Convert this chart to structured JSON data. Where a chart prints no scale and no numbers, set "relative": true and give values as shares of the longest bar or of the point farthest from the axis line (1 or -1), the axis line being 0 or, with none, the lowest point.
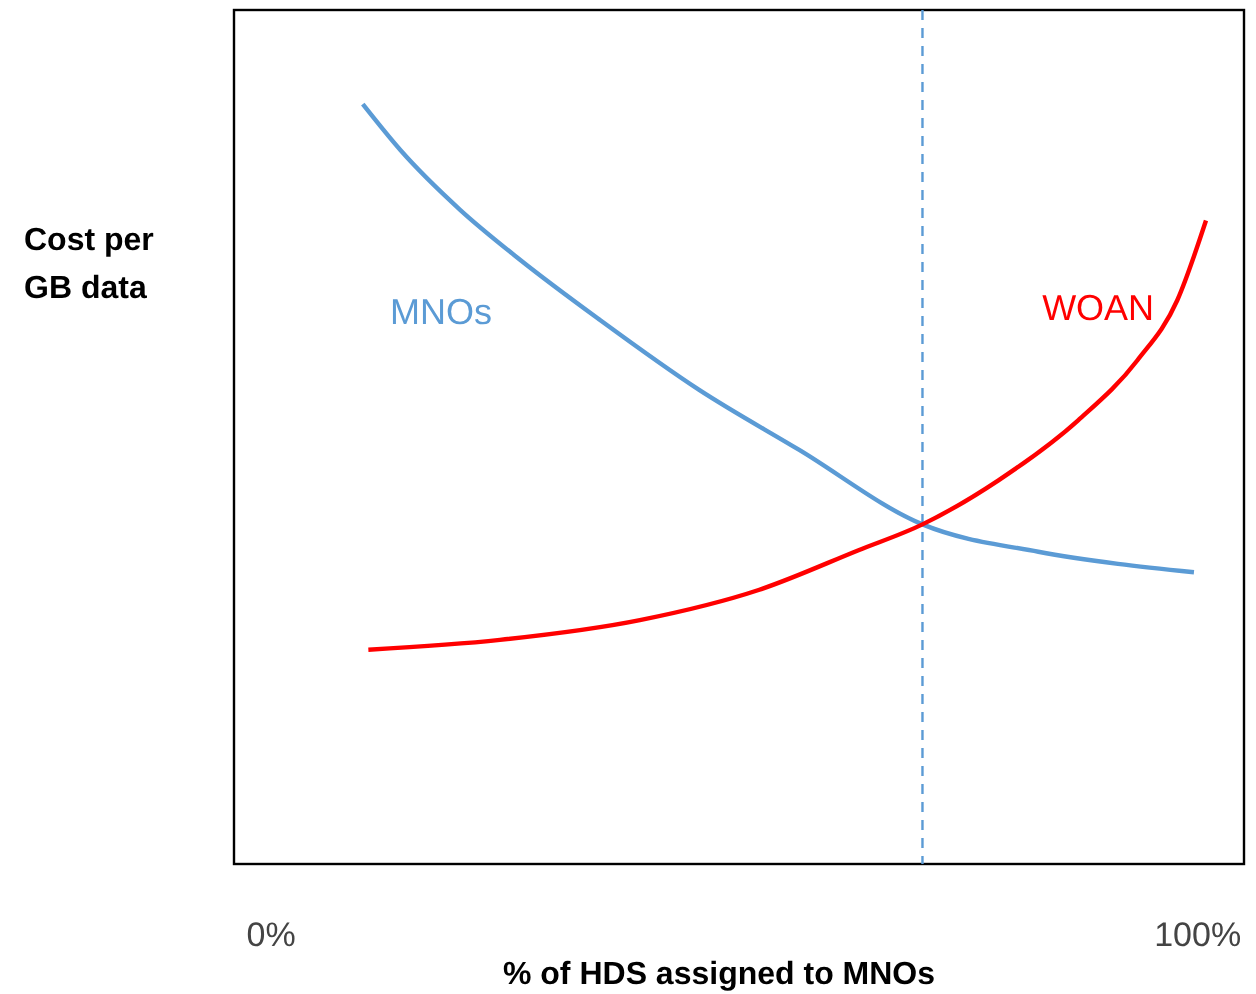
{
  "chart_data": {
    "type": "line",
    "relative": true,
    "xlabel": "% of HDS assigned to MNOs",
    "ylabel": "Cost per\nGB data",
    "xlim": [
      -4,
      105
    ],
    "xticks": [
      {
        "value": 0,
        "label": "0%"
      },
      {
        "value": 100,
        "label": "100%"
      }
    ],
    "grid": false,
    "marker": "none",
    "line_style": "solid",
    "series": [
      {
        "name": "MNOs",
        "color": "#5b9bd5",
        "x": [
          9.9,
          14.0,
          20.4,
          26.9,
          35.5,
          46.2,
          57.0,
          70.3,
          82.8,
          91.4,
          99.6
        ],
        "values": [
          1.0,
          0.939,
          0.861,
          0.795,
          0.716,
          0.624,
          0.545,
          0.447,
          0.411,
          0.395,
          0.384
        ]
      },
      {
        "name": "WOAN",
        "color": "#ff0000",
        "x": [
          10.5,
          24.7,
          39.8,
          52.7,
          63.4,
          70.3,
          78.5,
          87.1,
          93.5,
          97.8,
          100.9
        ],
        "values": [
          0.282,
          0.295,
          0.321,
          0.361,
          0.413,
          0.447,
          0.505,
          0.584,
          0.663,
          0.742,
          0.847
        ]
      }
    ],
    "ref_lines": [
      {
        "axis": "x",
        "value": 70.3,
        "color": "#5b9bd5",
        "line_style": "dashed"
      }
    ]
  }
}
